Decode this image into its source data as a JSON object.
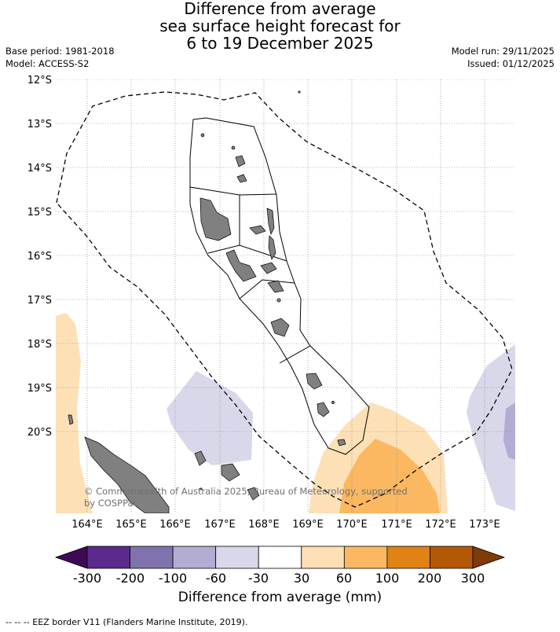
{
  "title": {
    "line1": "Difference from average",
    "line2": "sea surface height forecast for",
    "line3": "6 to 19 December 2025"
  },
  "meta": {
    "base_period": "Base period: 1981-2018",
    "model": "Model: ACCESS-S2",
    "model_run": "Model run: 29/11/2025",
    "issued": "Issued: 01/12/2025"
  },
  "map": {
    "lat_labels": [
      "12°S",
      "13°S",
      "14°S",
      "15°S",
      "16°S",
      "17°S",
      "18°S",
      "19°S",
      "20°S"
    ],
    "lon_labels": [
      "164°E",
      "165°E",
      "166°E",
      "167°E",
      "168°E",
      "169°E",
      "170°E",
      "171°E",
      "172°E",
      "173°E"
    ],
    "copyright_line1": "© Commonwealth of Australia 2025, Bureau of Meteorology, supported",
    "copyright_line2": "by COSPPac",
    "colors": {
      "land": "#808080",
      "neg_60_30": "#d8d8ea",
      "neg_100_60": "#b3acd3",
      "pos_30_60": "#fde0b6",
      "pos_60_100": "#fbb861"
    }
  },
  "colorbar": {
    "tick_labels": [
      "-300",
      "-200",
      "-100",
      "-60",
      "-30",
      "30",
      "60",
      "100",
      "200",
      "300"
    ],
    "colors": [
      "#3e0a55",
      "#5b2a8c",
      "#8072ad",
      "#b3acd3",
      "#d8d8ea",
      "#ffffff",
      "#fde0b6",
      "#fbb861",
      "#e08214",
      "#b35806",
      "#7f3b08"
    ],
    "label": "Difference from average (mm)"
  },
  "footer": {
    "text": "--  --  -- EEZ border V11 (Flanders Marine Institute, 2019)."
  }
}
